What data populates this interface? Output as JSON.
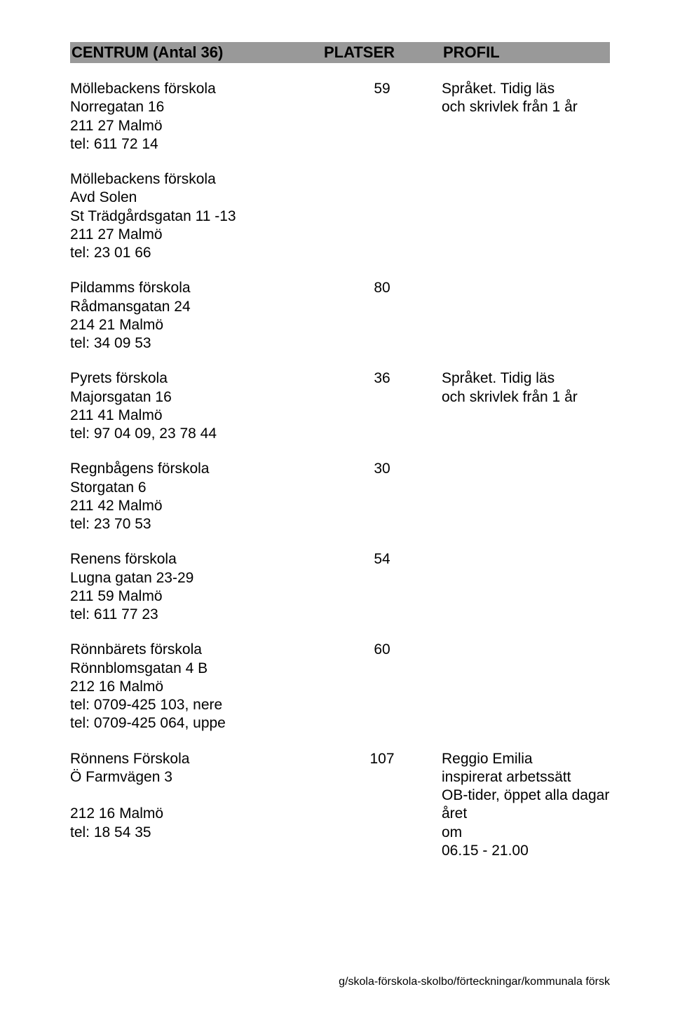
{
  "header": {
    "left": "CENTRUM (Antal 36)",
    "mid": "PLATSER",
    "right": "PROFIL"
  },
  "entries": [
    {
      "left": "Möllebackens förskola\nNorregatan 16\n211 27 Malmö\ntel: 611 72 14",
      "mid": "59",
      "right": "Språket. Tidig läs\noch skrivlek från 1 år"
    },
    {
      "left": "Möllebackens förskola\nAvd Solen\nSt Trädgårdsgatan 11 -13\n211 27 Malmö\ntel: 23 01 66",
      "mid": "",
      "right": ""
    },
    {
      "left": "Pildamms förskola\nRådmansgatan 24\n214 21 Malmö\ntel: 34 09 53",
      "mid": "80",
      "right": ""
    },
    {
      "left": "Pyrets förskola\nMajorsgatan 16\n211 41 Malmö\ntel: 97 04 09, 23 78 44",
      "mid": "36",
      "right": "Språket. Tidig läs\noch skrivlek från 1 år"
    },
    {
      "left": "Regnbågens förskola\nStorgatan 6\n211 42 Malmö\ntel: 23 70 53",
      "mid": "30",
      "right": ""
    },
    {
      "left": "Renens förskola\nLugna gatan 23-29\n211 59 Malmö\ntel: 611 77 23",
      "mid": "54",
      "right": ""
    },
    {
      "left": "Rönnbärets förskola\nRönnblomsgatan 4 B\n212 16 Malmö\ntel: 0709-425 103, nere\ntel: 0709-425 064, uppe",
      "mid": "60",
      "right": ""
    },
    {
      "left": "Rönnens Förskola\nÖ Farmvägen 3\n\n212 16 Malmö\ntel: 18 54 35",
      "mid": "107",
      "right": "Reggio Emilia\ninspirerat arbetssätt\nOB-tider, öppet alla dagar året\nom\n06.15 - 21.00"
    }
  ],
  "footer": "g/skola-förskola-skolbo/förteckningar/kommunala försk"
}
